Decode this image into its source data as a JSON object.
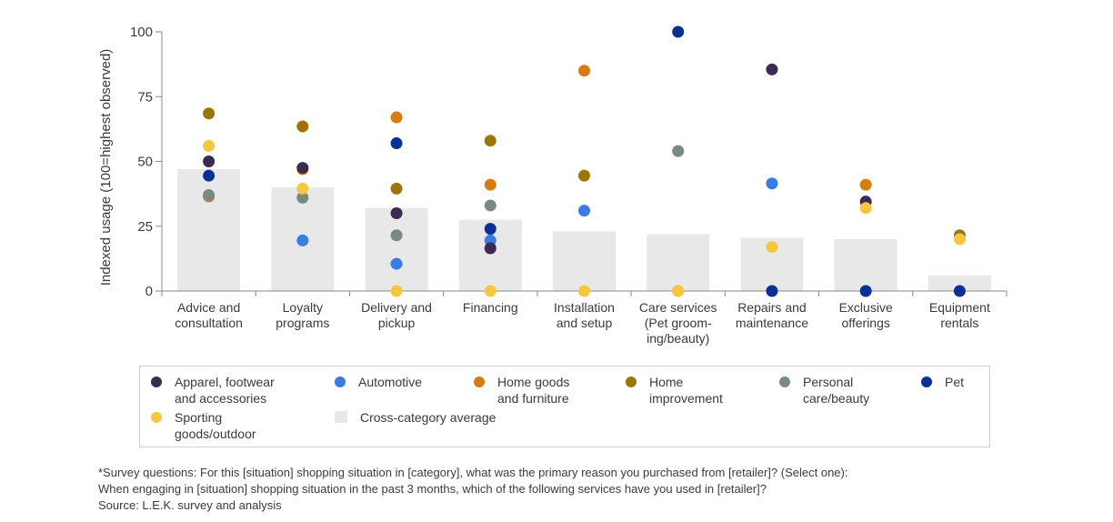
{
  "chart_data": {
    "type": "scatter",
    "ylabel": "Indexed usage (100=highest observed)",
    "ylim": [
      0,
      100
    ],
    "yticks": [
      0,
      25,
      50,
      75,
      100
    ],
    "categories": [
      [
        "Advice and",
        "consultation"
      ],
      [
        "Loyalty",
        "programs"
      ],
      [
        "Delivery and",
        "pickup"
      ],
      [
        "Financing"
      ],
      [
        "Installation",
        "and setup"
      ],
      [
        "Care services",
        "(Pet groom-",
        "ing/beauty)"
      ],
      [
        "Repairs and",
        "maintenance"
      ],
      [
        "Exclusive",
        "offerings"
      ],
      [
        "Equipment",
        "rentals"
      ]
    ],
    "average": {
      "name": "Cross-category average",
      "color": "#e8e8e8",
      "values": [
        47,
        40,
        32,
        27.5,
        23,
        22,
        20.5,
        20,
        6
      ]
    },
    "series": [
      {
        "name": "Home goods and furniture",
        "color": "#d67d12",
        "values": [
          36.5,
          47,
          67,
          41,
          85,
          0,
          null,
          41,
          null
        ]
      },
      {
        "name": "Personal care/beauty",
        "color": "#7a8a80",
        "values": [
          37,
          36,
          21.5,
          33,
          null,
          54,
          null,
          null,
          null
        ]
      },
      {
        "name": "Pet",
        "color": "#0a2f96",
        "values": [
          44.5,
          null,
          57,
          24,
          null,
          100,
          0,
          0,
          0
        ]
      },
      {
        "name": "Automotive",
        "color": "#3a7de0",
        "values": [
          null,
          19.5,
          10.5,
          19.5,
          31,
          null,
          41.5,
          null,
          null
        ]
      },
      {
        "name": "Apparel, footwear and accessories",
        "color": "#3b2a52",
        "values": [
          50,
          47.5,
          30,
          16.5,
          null,
          null,
          85.5,
          34.5,
          null
        ]
      },
      {
        "name": "Home improvement",
        "color": "#9a7608",
        "values": [
          68.5,
          63.5,
          39.5,
          58,
          44.5,
          null,
          null,
          null,
          21.5
        ]
      },
      {
        "name": "Sporting goods/outdoor",
        "color": "#f7c640",
        "values": [
          56,
          39.5,
          0,
          0,
          0,
          0,
          17,
          32,
          20
        ]
      }
    ]
  },
  "legend": {
    "items": [
      {
        "label": [
          "Apparel, footwear",
          "and accessories"
        ],
        "color": "#3b2a52"
      },
      {
        "label": [
          "Automotive"
        ],
        "color": "#3a7de0"
      },
      {
        "label": [
          "Home goods",
          "and furniture"
        ],
        "color": "#d67d12"
      },
      {
        "label": [
          "Home",
          "improvement"
        ],
        "color": "#9a7608"
      },
      {
        "label": [
          "Personal",
          "care/beauty"
        ],
        "color": "#7a8a80"
      },
      {
        "label": [
          "Pet"
        ],
        "color": "#0a2f96"
      },
      {
        "label": [
          "Sporting",
          "goods/outdoor"
        ],
        "color": "#f7c640"
      },
      {
        "label": [
          "Cross-category average"
        ],
        "color": "#e8e8e8"
      }
    ]
  },
  "footnote": {
    "line1": "*Survey questions: For this [situation] shopping situation in [category], what was the primary reason you purchased from [retailer]? (Select one):",
    "line2": "When engaging in [situation] shopping situation in the past 3 months, which of the following services have you used in [retailer]?",
    "source": "Source: L.E.K. survey and analysis"
  }
}
